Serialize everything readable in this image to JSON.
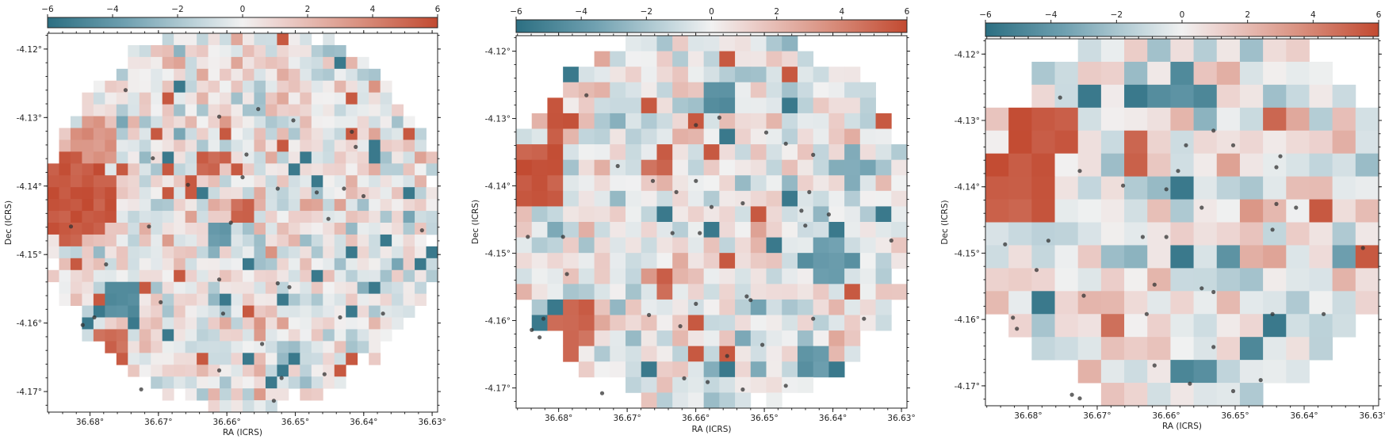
{
  "chart_data": [
    {
      "type": "heatmap",
      "id": "panel-1",
      "xlabel": "RA (ICRS)",
      "ylabel": "Dec (ICRS)",
      "x_ticks": [
        "36.68°",
        "36.67°",
        "36.66°",
        "36.65°",
        "36.64°",
        "36.63°"
      ],
      "y_ticks": [
        "-4.12°",
        "-4.13°",
        "-4.14°",
        "-4.15°",
        "-4.16°",
        "-4.17°"
      ],
      "xlim": [
        36.6862,
        36.6292
      ],
      "ylim": [
        -4.173,
        -4.1177
      ],
      "colorbar": {
        "ticks": [
          "−6",
          "−4",
          "−2",
          "0",
          "2",
          "4",
          "6"
        ],
        "range": [
          -6,
          6
        ]
      },
      "grid": {
        "cols": 34,
        "rows": 32,
        "seed": 11,
        "circle": {
          "cx": 0.5,
          "cy": 0.475,
          "r": 0.515
        }
      },
      "hotspots": [
        {
          "x": 0.06,
          "y": 0.43,
          "r": 0.12,
          "v": 5.5
        },
        {
          "x": 0.16,
          "y": 0.83,
          "r": 0.06,
          "v": 5.0
        },
        {
          "x": 0.12,
          "y": 0.29,
          "r": 0.06,
          "v": 3.5
        },
        {
          "x": 0.19,
          "y": 0.7,
          "r": 0.05,
          "v": -4.5
        },
        {
          "x": 0.42,
          "y": 0.34,
          "r": 0.04,
          "v": 5.0
        },
        {
          "x": 0.5,
          "y": 0.46,
          "r": 0.04,
          "v": 5.0
        },
        {
          "x": 0.45,
          "y": 0.53,
          "r": 0.03,
          "v": -4.0
        }
      ],
      "markers": [
        [
          0.2,
          0.15
        ],
        [
          0.27,
          0.33
        ],
        [
          0.36,
          0.4
        ],
        [
          0.44,
          0.22
        ],
        [
          0.51,
          0.32
        ],
        [
          0.54,
          0.2
        ],
        [
          0.63,
          0.23
        ],
        [
          0.78,
          0.26
        ],
        [
          0.79,
          0.3
        ],
        [
          0.69,
          0.42
        ],
        [
          0.76,
          0.41
        ],
        [
          0.81,
          0.43
        ],
        [
          0.47,
          0.5
        ],
        [
          0.5,
          0.38
        ],
        [
          0.59,
          0.41
        ],
        [
          0.26,
          0.51
        ],
        [
          0.15,
          0.61
        ],
        [
          0.06,
          0.51
        ],
        [
          0.12,
          0.75
        ],
        [
          0.09,
          0.77
        ],
        [
          0.29,
          0.71
        ],
        [
          0.44,
          0.65
        ],
        [
          0.45,
          0.74
        ],
        [
          0.59,
          0.66
        ],
        [
          0.62,
          0.67
        ],
        [
          0.75,
          0.75
        ],
        [
          0.86,
          0.74
        ],
        [
          0.55,
          0.82
        ],
        [
          0.44,
          0.89
        ],
        [
          0.6,
          0.91
        ],
        [
          0.71,
          0.9
        ],
        [
          0.24,
          0.94
        ],
        [
          0.58,
          0.97
        ],
        [
          0.96,
          0.52
        ],
        [
          0.72,
          0.49
        ]
      ]
    },
    {
      "type": "heatmap",
      "id": "panel-2",
      "xlabel": "RA (ICRS)",
      "ylabel": "Dec (ICRS)",
      "x_ticks": [
        "36.68°",
        "36.67°",
        "36.66°",
        "36.65°",
        "36.64°",
        "36.63°"
      ],
      "y_ticks": [
        "-4.12°",
        "-4.13°",
        "-4.14°",
        "-4.15°",
        "-4.16°",
        "-4.17°"
      ],
      "xlim": [
        36.6862,
        36.6292
      ],
      "ylim": [
        -4.173,
        -4.1177
      ],
      "colorbar": {
        "ticks": [
          "−6",
          "−4",
          "−2",
          "0",
          "2",
          "4",
          "6"
        ],
        "range": [
          -6,
          6
        ]
      },
      "grid": {
        "cols": 25,
        "rows": 24,
        "seed": 23,
        "circle": {
          "cx": 0.5,
          "cy": 0.485,
          "r": 0.53
        }
      },
      "hotspots": [
        {
          "x": 0.04,
          "y": 0.37,
          "r": 0.1,
          "v": 5.5
        },
        {
          "x": 0.11,
          "y": 0.23,
          "r": 0.05,
          "v": 5.5
        },
        {
          "x": 0.15,
          "y": 0.79,
          "r": 0.07,
          "v": 5.0
        },
        {
          "x": 0.37,
          "y": 0.34,
          "r": 0.04,
          "v": 5.0
        },
        {
          "x": 0.38,
          "y": 0.66,
          "r": 0.03,
          "v": 5.0
        },
        {
          "x": 0.51,
          "y": 0.16,
          "r": 0.05,
          "v": -4.5
        },
        {
          "x": 0.8,
          "y": 0.6,
          "r": 0.07,
          "v": -4.0
        },
        {
          "x": 0.86,
          "y": 0.35,
          "r": 0.05,
          "v": -3.5
        },
        {
          "x": 0.77,
          "y": 0.87,
          "r": 0.04,
          "v": -4.0
        }
      ],
      "markers": [
        [
          0.18,
          0.16
        ],
        [
          0.46,
          0.24
        ],
        [
          0.52,
          0.22
        ],
        [
          0.64,
          0.26
        ],
        [
          0.46,
          0.39
        ],
        [
          0.26,
          0.35
        ],
        [
          0.35,
          0.39
        ],
        [
          0.69,
          0.29
        ],
        [
          0.76,
          0.32
        ],
        [
          0.75,
          0.42
        ],
        [
          0.5,
          0.46
        ],
        [
          0.58,
          0.45
        ],
        [
          0.41,
          0.42
        ],
        [
          0.03,
          0.54
        ],
        [
          0.12,
          0.54
        ],
        [
          0.4,
          0.53
        ],
        [
          0.47,
          0.53
        ],
        [
          0.73,
          0.47
        ],
        [
          0.8,
          0.48
        ],
        [
          0.74,
          0.51
        ],
        [
          0.96,
          0.55
        ],
        [
          0.13,
          0.64
        ],
        [
          0.46,
          0.72
        ],
        [
          0.59,
          0.7
        ],
        [
          0.6,
          0.71
        ],
        [
          0.07,
          0.76
        ],
        [
          0.04,
          0.79
        ],
        [
          0.34,
          0.75
        ],
        [
          0.42,
          0.78
        ],
        [
          0.76,
          0.76
        ],
        [
          0.89,
          0.76
        ],
        [
          0.63,
          0.83
        ],
        [
          0.54,
          0.86
        ],
        [
          0.43,
          0.92
        ],
        [
          0.49,
          0.93
        ],
        [
          0.58,
          0.95
        ],
        [
          0.69,
          0.94
        ],
        [
          0.22,
          0.96
        ],
        [
          0.06,
          0.81
        ]
      ]
    },
    {
      "type": "heatmap",
      "id": "panel-3",
      "xlabel": "RA (ICRS)",
      "ylabel": "Dec (ICRS)",
      "x_ticks": [
        "36.68°",
        "36.67°",
        "36.66°",
        "36.65°",
        "36.64°",
        "36.63°"
      ],
      "y_ticks": [
        "-4.12°",
        "-4.13°",
        "-4.14°",
        "-4.15°",
        "-4.16°",
        "-4.17°"
      ],
      "xlim": [
        36.6862,
        36.6292
      ],
      "ylim": [
        -4.173,
        -4.1177
      ],
      "colorbar": {
        "ticks": [
          "−6",
          "−4",
          "−2",
          "0",
          "2",
          "4",
          "6"
        ],
        "range": [
          -6,
          6
        ]
      },
      "grid": {
        "cols": 17,
        "rows": 16,
        "seed": 37,
        "circle": {
          "cx": 0.5,
          "cy": 0.48,
          "r": 0.54
        }
      },
      "hotspots": [
        {
          "x": 0.05,
          "y": 0.4,
          "r": 0.12,
          "v": 5.5
        },
        {
          "x": 0.14,
          "y": 0.25,
          "r": 0.08,
          "v": 5.5
        },
        {
          "x": 0.37,
          "y": 0.31,
          "r": 0.05,
          "v": 5.0
        },
        {
          "x": 0.33,
          "y": 0.79,
          "r": 0.03,
          "v": 5.0
        },
        {
          "x": 0.06,
          "y": 0.86,
          "r": 0.03,
          "v": 5.0
        },
        {
          "x": 0.72,
          "y": 0.22,
          "r": 0.03,
          "v": 5.0
        },
        {
          "x": 0.5,
          "y": 0.15,
          "r": 0.06,
          "v": -4.5
        },
        {
          "x": 0.53,
          "y": 0.9,
          "r": 0.04,
          "v": -4.5
        },
        {
          "x": 0.67,
          "y": 0.83,
          "r": 0.03,
          "v": -4.5
        },
        {
          "x": 0.62,
          "y": 0.57,
          "r": 0.03,
          "v": -4.0
        },
        {
          "x": 0.92,
          "y": 0.57,
          "r": 0.03,
          "v": -4.0
        }
      ],
      "markers": [
        [
          0.19,
          0.16
        ],
        [
          0.51,
          0.29
        ],
        [
          0.58,
          0.25
        ],
        [
          0.63,
          0.29
        ],
        [
          0.75,
          0.32
        ],
        [
          0.74,
          0.35
        ],
        [
          0.24,
          0.36
        ],
        [
          0.35,
          0.4
        ],
        [
          0.46,
          0.41
        ],
        [
          0.49,
          0.36
        ],
        [
          0.55,
          0.46
        ],
        [
          0.74,
          0.45
        ],
        [
          0.79,
          0.46
        ],
        [
          0.05,
          0.56
        ],
        [
          0.16,
          0.55
        ],
        [
          0.4,
          0.54
        ],
        [
          0.46,
          0.54
        ],
        [
          0.73,
          0.52
        ],
        [
          0.96,
          0.57
        ],
        [
          0.13,
          0.63
        ],
        [
          0.25,
          0.7
        ],
        [
          0.43,
          0.67
        ],
        [
          0.55,
          0.68
        ],
        [
          0.58,
          0.69
        ],
        [
          0.41,
          0.75
        ],
        [
          0.07,
          0.76
        ],
        [
          0.08,
          0.79
        ],
        [
          0.73,
          0.75
        ],
        [
          0.86,
          0.75
        ],
        [
          0.58,
          0.84
        ],
        [
          0.43,
          0.89
        ],
        [
          0.52,
          0.94
        ],
        [
          0.63,
          0.96
        ],
        [
          0.7,
          0.93
        ],
        [
          0.22,
          0.97
        ],
        [
          0.24,
          0.98
        ]
      ]
    }
  ]
}
